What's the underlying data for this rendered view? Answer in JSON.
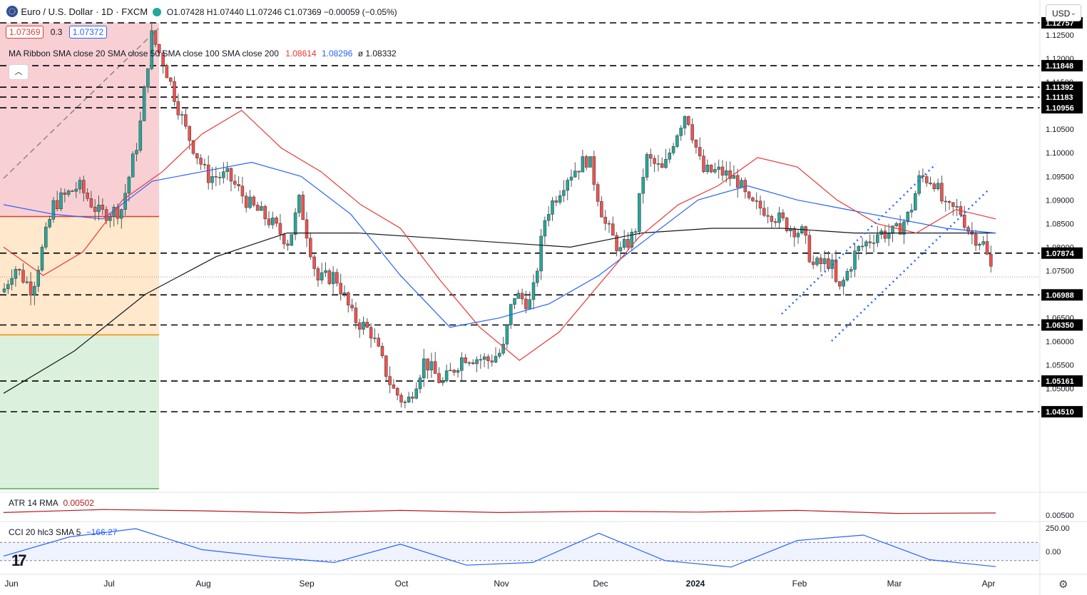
{
  "header": {
    "symbol_title": "Euro / U.S. Dollar · 1D · FXCM",
    "ohlc_text": "O1.07428 H1.07440 L1.07246 C1.07369 −0.00059 (−0.05%)",
    "bid": "1.07369",
    "spread": "0.3",
    "ask": "1.07372",
    "currency": "USD"
  },
  "ma_legend": {
    "label": "MA Ribbon SMA close 20 SMA close 50 SMA close 100 SMA close 200",
    "v1": "1.08614",
    "v2": "1.08296",
    "v3": "ø 1.08332",
    "colors": {
      "sma20": "#e53935",
      "sma50": "#2962ff",
      "sma200": "#131722"
    }
  },
  "atr_legend": {
    "label": "ATR 14 RMA",
    "value": "0.00502",
    "color": "#b71c1c"
  },
  "cci_legend": {
    "label": "CCI 20 hlc3 SMA 5",
    "value": "−166.27",
    "color": "#2962ff"
  },
  "price_axis": [
    "1.12500",
    "1.12000",
    "1.11500",
    "1.11000",
    "1.10500",
    "1.10000",
    "1.09500",
    "1.09000",
    "1.08500",
    "1.08000",
    "1.07500",
    "1.07000",
    "1.06500",
    "1.06000",
    "1.05500",
    "1.05000",
    "1.04500"
  ],
  "level_tags": [
    "1.12757",
    "1.11848",
    "1.11392",
    "1.11183",
    "1.10956",
    "1.07874",
    "1.06988",
    "1.06350",
    "1.05161",
    "1.04510"
  ],
  "atr_axis": "0.00500",
  "cci_axis": [
    "250.00",
    "0.00"
  ],
  "time_axis": [
    "Jun",
    "Jul",
    "Aug",
    "Sep",
    "Oct",
    "Nov",
    "Dec",
    "2024",
    "Feb",
    "Mar",
    "Apr"
  ],
  "chart_data": {
    "type": "candlestick",
    "symbol": "EURUSD",
    "timeframe": "1D",
    "ylim": [
      1.0425,
      1.1285
    ],
    "horizontal_levels": [
      1.12757,
      1.11848,
      1.11392,
      1.11183,
      1.10956,
      1.07874,
      1.06988,
      1.0635,
      1.05161,
      1.0451
    ],
    "fib_levels": [
      1.12757,
      1.0865,
      1.0614,
      1.0524
    ],
    "last_close": 1.07369,
    "series": [
      {
        "name": "SMA 20",
        "values": [
          1.08,
          1.074,
          1.079,
          1.09,
          1.096,
          1.104,
          1.109,
          1.101,
          1.096,
          1.089,
          1.084,
          1.073,
          1.063,
          1.056,
          1.062,
          1.072,
          1.082,
          1.089,
          1.093,
          1.099,
          1.097,
          1.09,
          1.085,
          1.083,
          1.088,
          1.086
        ]
      },
      {
        "name": "SMA 50",
        "values": [
          1.089,
          1.087,
          1.086,
          1.094,
          1.096,
          1.098,
          1.095,
          1.087,
          1.074,
          1.063,
          1.065,
          1.068,
          1.074,
          1.082,
          1.09,
          1.093,
          1.09,
          1.088,
          1.086,
          1.084,
          1.083
        ]
      },
      {
        "name": "SMA 200",
        "values": [
          1.049,
          1.058,
          1.07,
          1.078,
          1.083,
          1.083,
          1.082,
          1.081,
          1.08,
          1.083,
          1.084,
          1.084,
          1.083,
          1.083,
          1.083
        ]
      },
      {
        "name": "ATR 14 RMA",
        "values": [
          0.0051,
          0.0058,
          0.0055,
          0.005,
          0.0056,
          0.0051,
          0.0054,
          0.0052,
          0.0056,
          0.0049,
          0.005
        ]
      },
      {
        "name": "CCI 20 hlc3 SMA 5",
        "values": [
          -50,
          160,
          250,
          20,
          -60,
          -120,
          80,
          -150,
          -120,
          200,
          -100,
          -170,
          120,
          180,
          -90,
          -166
        ]
      }
    ]
  }
}
